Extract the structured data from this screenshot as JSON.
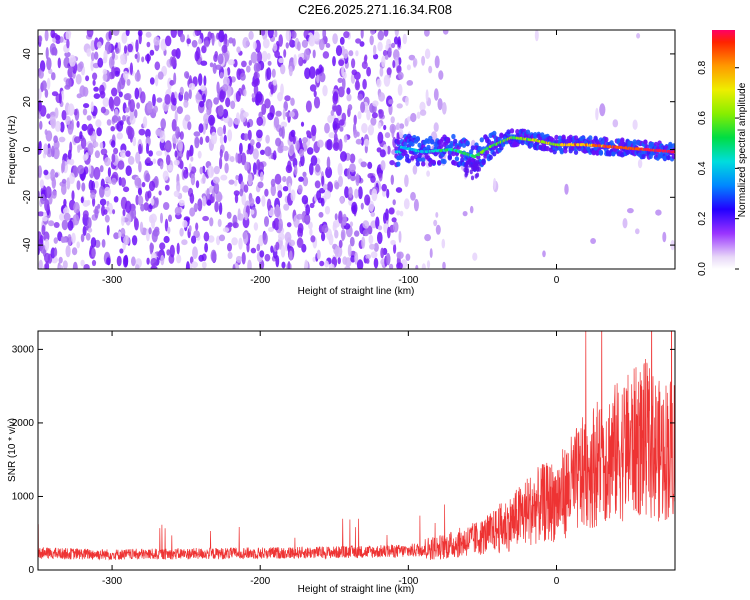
{
  "title": "C2E6.2025.271.16.34.R08",
  "chart_data": [
    {
      "type": "heatmap",
      "xlabel": "Height of straight line (km)",
      "ylabel": "Frequency (Hz)",
      "xlim": [
        -350,
        80
      ],
      "ylim": [
        -50,
        50
      ],
      "xticks": [
        -300,
        -200,
        -100,
        0
      ],
      "yticks": [
        -40,
        -20,
        0,
        20,
        40
      ],
      "colorbar": {
        "label": "Normalized spectral amplitude",
        "range": [
          0,
          0.95
        ],
        "ticks": [
          0.0,
          0.2,
          0.4,
          0.6,
          0.8
        ]
      },
      "ridge_points": [
        {
          "x": -105,
          "y": 1
        },
        {
          "x": -90,
          "y": -1
        },
        {
          "x": -70,
          "y": 0
        },
        {
          "x": -55,
          "y": -3
        },
        {
          "x": -45,
          "y": 1
        },
        {
          "x": -30,
          "y": 5
        },
        {
          "x": -15,
          "y": 4
        },
        {
          "x": 0,
          "y": 2
        },
        {
          "x": 20,
          "y": 2
        },
        {
          "x": 40,
          "y": 1
        },
        {
          "x": 60,
          "y": 0
        },
        {
          "x": 80,
          "y": -1
        }
      ]
    },
    {
      "type": "line",
      "xlabel": "Height of straight line (km)",
      "ylabel": "SNR (10 * v/v)",
      "xlim": [
        -350,
        80
      ],
      "ylim": [
        0,
        3250
      ],
      "xticks": [
        -300,
        -200,
        -100,
        0
      ],
      "yticks": [
        0,
        1000,
        2000,
        3000
      ],
      "color": "#ee3333",
      "series": [
        {
          "name": "SNR",
          "x": [
            -350,
            -300,
            -250,
            -200,
            -150,
            -100,
            -75,
            -50,
            -30,
            -20,
            -10,
            0,
            10,
            20,
            30,
            40,
            50,
            60,
            70,
            80
          ],
          "y": [
            230,
            210,
            220,
            230,
            240,
            260,
            320,
            450,
            650,
            800,
            900,
            950,
            1150,
            1350,
            1500,
            1600,
            1700,
            1800,
            1600,
            1700
          ]
        }
      ]
    }
  ]
}
